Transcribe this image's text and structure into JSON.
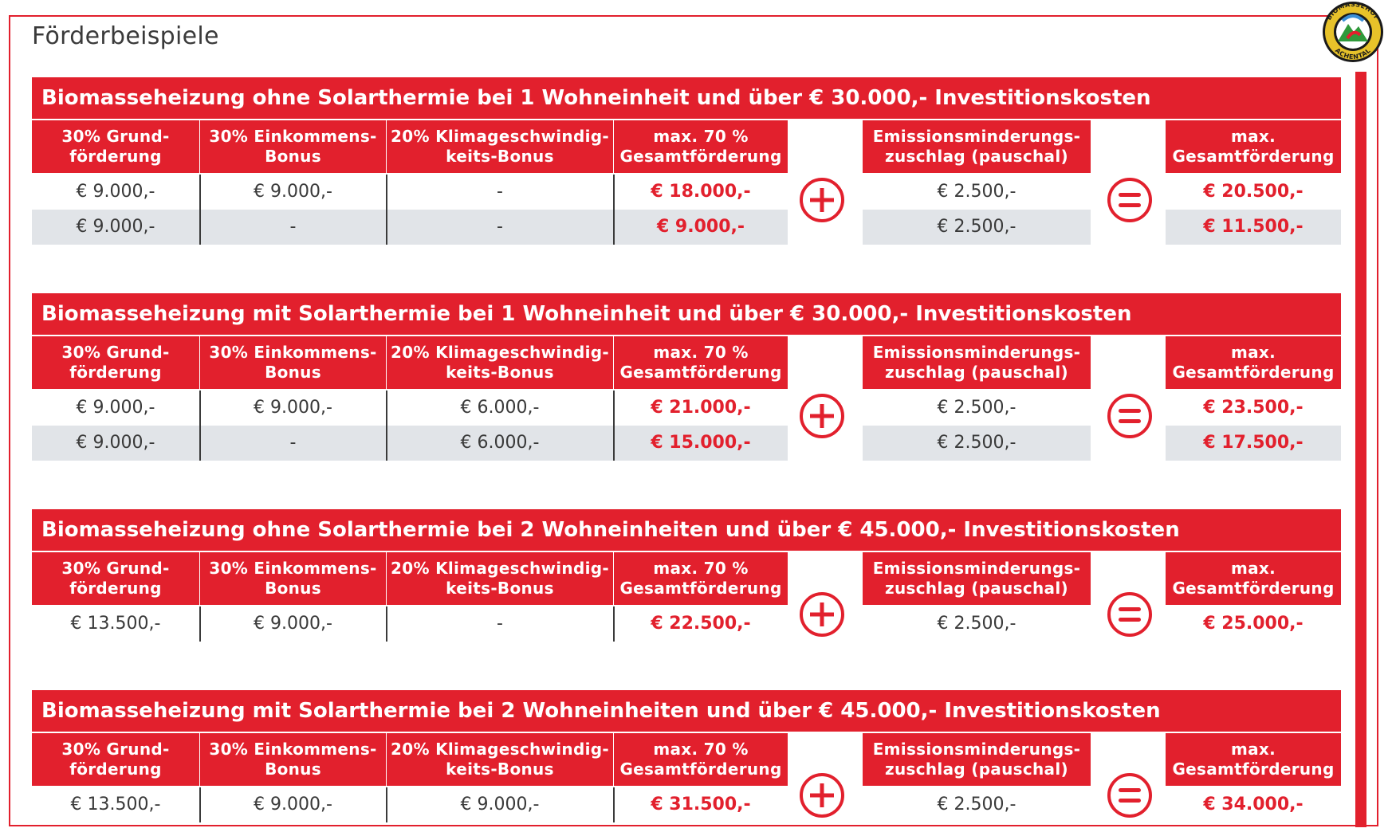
{
  "page": {
    "title": "Förderbeispiele"
  },
  "logo": {
    "top_text": "BIOMASSEHOF",
    "bottom_text": "ACHENTAL",
    "icon": "biomassehof-logo-icon"
  },
  "headers": {
    "col1_line1": "30% Grund-",
    "col1_line2": "förderung",
    "col2_line1": "30% Einkommens-",
    "col2_line2": "Bonus",
    "col3_line1": "20% Klimageschwindig-",
    "col3_line2": "keits-Bonus",
    "col4_line1": "max. 70 %",
    "col4_line2": "Gesamtförderung",
    "col5_line1": "Emissionsminderungs-",
    "col5_line2": "zuschlag (pauschal)",
    "col6_line1": "max.",
    "col6_line2": "Gesamtförderung"
  },
  "operators": {
    "plus": "plus-circle-icon",
    "equals": "equals-circle-icon"
  },
  "colors": {
    "accent_red": "#e2202d",
    "row_shade": "#e1e4e8",
    "text": "#3a3a3a"
  },
  "sections": [
    {
      "title": "Biomasseheizung ohne Solarthermie bei 1 Wohneinheit und über € 30.000,- Investitionskosten",
      "rows": [
        [
          "€ 9.000,-",
          "€ 9.000,-",
          "-",
          "€ 18.000,-",
          "€ 2.500,-",
          "€ 20.500,-"
        ],
        [
          "€ 9.000,-",
          "-",
          "-",
          "€ 9.000,-",
          "€ 2.500,-",
          "€ 11.500,-"
        ]
      ]
    },
    {
      "title": "Biomasseheizung mit Solarthermie bei 1 Wohneinheit und über € 30.000,- Investitionskosten",
      "rows": [
        [
          "€ 9.000,-",
          "€ 9.000,-",
          "€ 6.000,-",
          "€ 21.000,-",
          "€ 2.500,-",
          "€ 23.500,-"
        ],
        [
          "€ 9.000,-",
          "-",
          "€ 6.000,-",
          "€ 15.000,-",
          "€ 2.500,-",
          "€ 17.500,-"
        ]
      ]
    },
    {
      "title": "Biomasseheizung ohne Solarthermie bei 2 Wohneinheiten und über € 45.000,- Investitionskosten",
      "rows": [
        [
          "€ 13.500,-",
          "€ 9.000,-",
          "-",
          "€ 22.500,-",
          "€ 2.500,-",
          "€ 25.000,-"
        ]
      ]
    },
    {
      "title": "Biomasseheizung mit Solarthermie bei 2 Wohneinheiten und über € 45.000,- Investitionskosten",
      "rows": [
        [
          "€ 13.500,-",
          "€ 9.000,-",
          "€ 9.000,-",
          "€ 31.500,-",
          "€ 2.500,-",
          "€ 34.000,-"
        ]
      ]
    }
  ]
}
